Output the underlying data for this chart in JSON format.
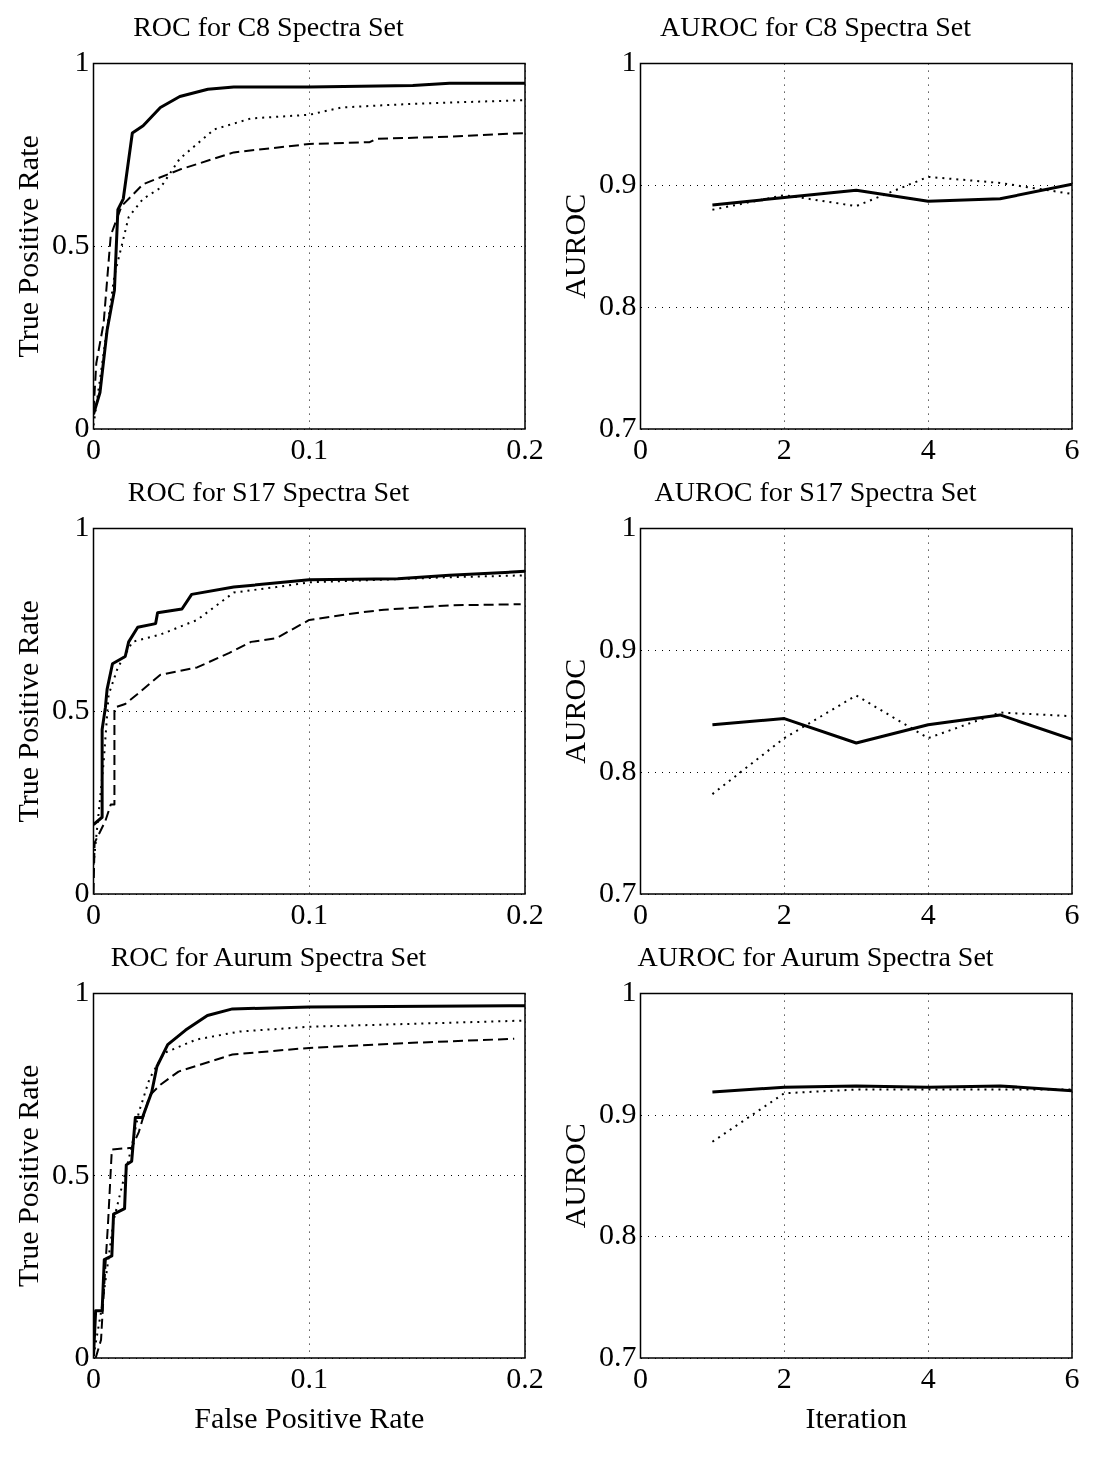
{
  "chart_data": [
    {
      "type": "line",
      "title": "ROC for C8 Spectra Set",
      "ylabel": "True Positive Rate",
      "xlim": [
        0,
        0.2
      ],
      "ylim": [
        0,
        1
      ],
      "xticks": [
        0,
        0.1,
        0.2
      ],
      "yticks": [
        0,
        0.5,
        1
      ],
      "grid": true,
      "series": [
        {
          "color": "#000000",
          "line_style": "solid",
          "x": [
            0,
            0.003,
            0.0063,
            0.0097,
            0.0113,
            0.0138,
            0.018,
            0.023,
            0.031,
            0.04,
            0.053,
            0.065,
            0.1,
            0.148,
            0.165,
            0.2
          ],
          "values": [
            0.04,
            0.1,
            0.27,
            0.38,
            0.6,
            0.63,
            0.81,
            0.83,
            0.88,
            0.91,
            0.93,
            0.936,
            0.936,
            0.94,
            0.946,
            0.946
          ]
        },
        {
          "color": "#000000",
          "line_style": "dotted",
          "x": [
            0,
            0.005,
            0.0097,
            0.013,
            0.0163,
            0.023,
            0.031,
            0.04,
            0.056,
            0.073,
            0.1,
            0.115,
            0.148,
            0.2
          ],
          "values": [
            0.01,
            0.22,
            0.42,
            0.5,
            0.58,
            0.63,
            0.66,
            0.74,
            0.82,
            0.85,
            0.86,
            0.88,
            0.89,
            0.9
          ]
        },
        {
          "color": "#000000",
          "line_style": "dashed",
          "x": [
            0,
            0.0013,
            0.0047,
            0.008,
            0.013,
            0.023,
            0.04,
            0.065,
            0.1,
            0.128,
            0.131,
            0.165,
            0.2
          ],
          "values": [
            0.05,
            0.18,
            0.29,
            0.53,
            0.61,
            0.67,
            0.71,
            0.757,
            0.78,
            0.785,
            0.794,
            0.8,
            0.81
          ]
        }
      ]
    },
    {
      "type": "line",
      "title": "AUROC for C8 Spectra Set",
      "ylabel": "AUROC",
      "x": [
        1,
        2,
        3,
        4,
        5,
        6
      ],
      "xlim": [
        0,
        6
      ],
      "ylim": [
        0.7,
        1
      ],
      "xticks": [
        0,
        2,
        4,
        6
      ],
      "yticks": [
        0.7,
        0.8,
        0.9,
        1
      ],
      "grid": true,
      "series": [
        {
          "color": "#000000",
          "line_style": "solid",
          "values": [
            0.884,
            0.89,
            0.896,
            0.887,
            0.889,
            0.901
          ]
        },
        {
          "color": "#000000",
          "line_style": "dotted",
          "values": [
            0.88,
            0.892,
            0.883,
            0.907,
            0.902,
            0.893
          ]
        }
      ]
    },
    {
      "type": "line",
      "title": "ROC for S17 Spectra Set",
      "ylabel": "True Positive Rate",
      "xlim": [
        0,
        0.2
      ],
      "ylim": [
        0,
        1
      ],
      "xticks": [
        0,
        0.1,
        0.2
      ],
      "yticks": [
        0,
        0.5,
        1
      ],
      "grid": true,
      "series": [
        {
          "color": "#000000",
          "line_style": "solid",
          "x": [
            0,
            0.004,
            0.004,
            0.0055,
            0.0063,
            0.0088,
            0.0147,
            0.0163,
            0.0205,
            0.0288,
            0.0297,
            0.041,
            0.0455,
            0.065,
            0.1,
            0.141,
            0.165,
            0.2
          ],
          "values": [
            0.19,
            0.21,
            0.45,
            0.51,
            0.56,
            0.63,
            0.65,
            0.69,
            0.73,
            0.74,
            0.77,
            0.78,
            0.82,
            0.84,
            0.86,
            0.863,
            0.872,
            0.883
          ]
        },
        {
          "color": "#000000",
          "line_style": "dotted",
          "x": [
            0,
            0.0047,
            0.007,
            0.0113,
            0.018,
            0.031,
            0.048,
            0.065,
            0.0847,
            0.1,
            0.165,
            0.2
          ],
          "values": [
            0.08,
            0.36,
            0.545,
            0.62,
            0.69,
            0.71,
            0.75,
            0.825,
            0.84,
            0.853,
            0.867,
            0.872
          ]
        },
        {
          "color": "#000000",
          "line_style": "dashed",
          "x": [
            0,
            0.0005,
            0.0055,
            0.008,
            0.0097,
            0.0097,
            0.0147,
            0.021,
            0.031,
            0.048,
            0.063,
            0.073,
            0.0847,
            0.1,
            0.123,
            0.1347,
            0.165,
            0.198
          ],
          "values": [
            0.003,
            0.14,
            0.2,
            0.245,
            0.245,
            0.51,
            0.52,
            0.55,
            0.6,
            0.62,
            0.66,
            0.69,
            0.7,
            0.75,
            0.77,
            0.778,
            0.79,
            0.793
          ]
        }
      ]
    },
    {
      "type": "line",
      "title": "AUROC for S17 Spectra Set",
      "ylabel": "AUROC",
      "x": [
        1,
        2,
        3,
        4,
        5,
        6
      ],
      "xlim": [
        0,
        6
      ],
      "ylim": [
        0.7,
        1
      ],
      "xticks": [
        0,
        2,
        4,
        6
      ],
      "yticks": [
        0.7,
        0.8,
        0.9,
        1
      ],
      "grid": true,
      "series": [
        {
          "color": "#000000",
          "line_style": "solid",
          "values": [
            0.839,
            0.844,
            0.824,
            0.839,
            0.847,
            0.827
          ]
        },
        {
          "color": "#000000",
          "line_style": "dotted",
          "values": [
            0.782,
            0.828,
            0.863,
            0.828,
            0.849,
            0.846
          ]
        }
      ]
    },
    {
      "type": "line",
      "title": "ROC for Aurum Spectra Set",
      "xlabel": "False Positive Rate",
      "ylabel": "True Positive Rate",
      "xlim": [
        0,
        0.2
      ],
      "ylim": [
        0,
        1
      ],
      "xticks": [
        0,
        0.1,
        0.2
      ],
      "yticks": [
        0,
        0.5,
        1
      ],
      "grid": true,
      "series": [
        {
          "color": "#000000",
          "line_style": "solid",
          "x": [
            0,
            0.001,
            0.004,
            0.005,
            0.0085,
            0.0093,
            0.0144,
            0.0152,
            0.0177,
            0.0194,
            0.0227,
            0.027,
            0.0294,
            0.0344,
            0.0427,
            0.0528,
            0.0644,
            0.1,
            0.2
          ],
          "values": [
            0.005,
            0.13,
            0.13,
            0.27,
            0.28,
            0.395,
            0.41,
            0.53,
            0.54,
            0.66,
            0.66,
            0.73,
            0.8,
            0.86,
            0.9,
            0.94,
            0.958,
            0.963,
            0.967
          ]
        },
        {
          "color": "#000000",
          "line_style": "dotted",
          "x": [
            0,
            0.004,
            0.0093,
            0.0177,
            0.021,
            0.026,
            0.0327,
            0.0477,
            0.0678,
            0.1,
            0.2
          ],
          "values": [
            0.005,
            0.144,
            0.377,
            0.58,
            0.674,
            0.767,
            0.837,
            0.874,
            0.896,
            0.909,
            0.926
          ]
        },
        {
          "color": "#000000",
          "line_style": "dashed",
          "x": [
            0.001,
            0.0035,
            0.0043,
            0.0068,
            0.0085,
            0.0177,
            0.021,
            0.026,
            0.031,
            0.0394,
            0.0644,
            0.1,
            0.148,
            0.195
          ],
          "values": [
            0,
            0.05,
            0.135,
            0.377,
            0.572,
            0.577,
            0.62,
            0.72,
            0.75,
            0.786,
            0.833,
            0.851,
            0.865,
            0.876
          ]
        }
      ]
    },
    {
      "type": "line",
      "title": "AUROC for Aurum Spectra Set",
      "xlabel": "Iteration",
      "ylabel": "AUROC",
      "x": [
        1,
        2,
        3,
        4,
        5,
        6
      ],
      "xlim": [
        0,
        6
      ],
      "ylim": [
        0.7,
        1
      ],
      "xticks": [
        0,
        2,
        4,
        6
      ],
      "yticks": [
        0.7,
        0.8,
        0.9,
        1
      ],
      "grid": true,
      "series": [
        {
          "color": "#000000",
          "line_style": "solid",
          "values": [
            0.919,
            0.923,
            0.924,
            0.923,
            0.924,
            0.92
          ]
        },
        {
          "color": "#000000",
          "line_style": "dotted",
          "values": [
            0.878,
            0.918,
            0.921,
            0.921,
            0.921,
            0.921
          ]
        }
      ]
    }
  ]
}
